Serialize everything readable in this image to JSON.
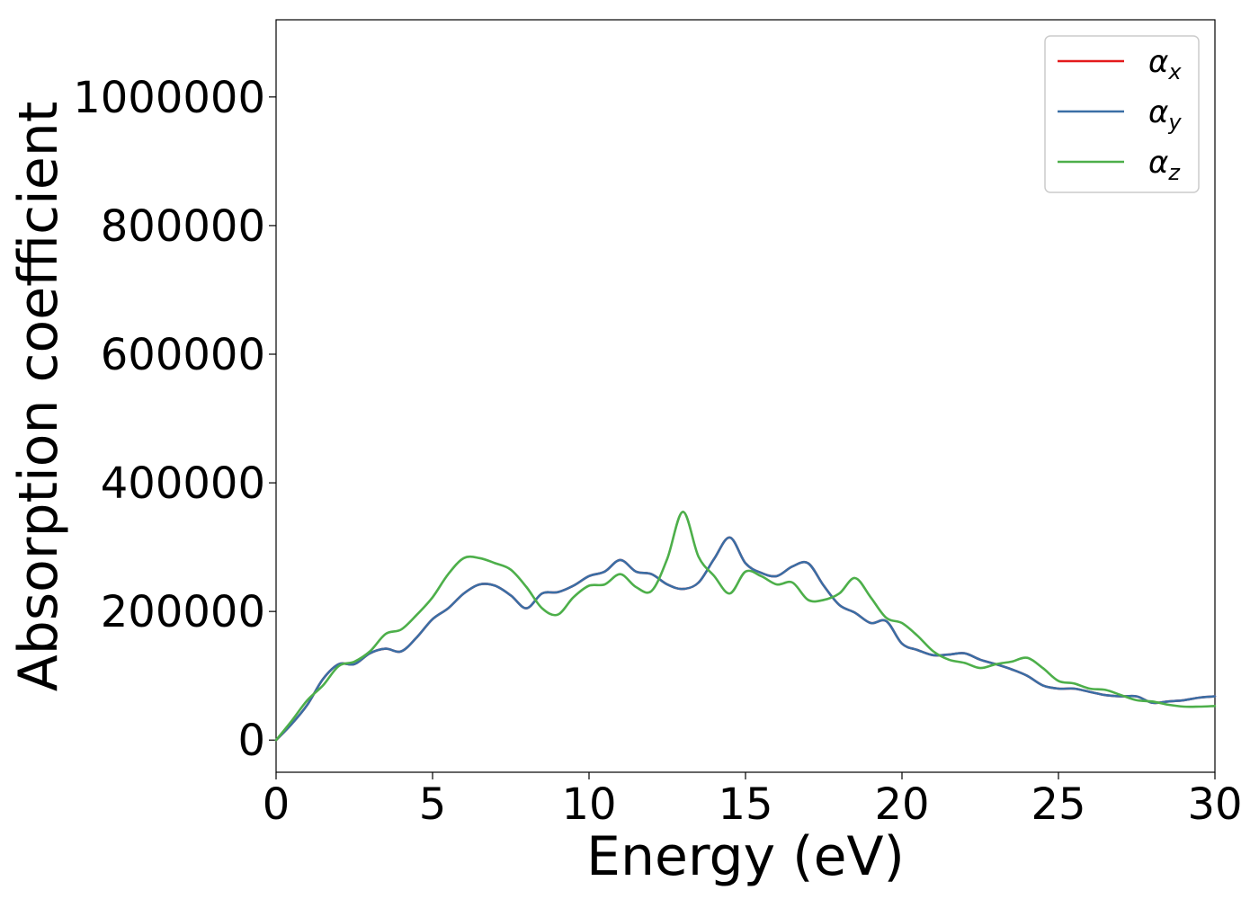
{
  "chart_data": {
    "type": "line",
    "xlabel": "Energy (eV)",
    "ylabel": "Absorption coefficient",
    "xlim": [
      0,
      30
    ],
    "ylim": [
      -50000,
      1120000
    ],
    "xticks": [
      0,
      5,
      10,
      15,
      20,
      25,
      30
    ],
    "yticks": [
      0,
      200000,
      400000,
      600000,
      800000,
      1000000
    ],
    "grid": false,
    "legend_position": "top-right",
    "series": [
      {
        "name": "αx",
        "legend_base": "α",
        "legend_sub": "x",
        "color": "#e41a1c",
        "x": [
          0,
          0.5,
          1,
          1.5,
          2,
          2.5,
          3,
          3.5,
          4,
          4.5,
          5,
          5.5,
          6,
          6.5,
          7,
          7.5,
          8,
          8.5,
          9,
          9.5,
          10,
          10.5,
          11,
          11.5,
          12,
          12.5,
          13,
          13.5,
          14,
          14.5,
          15,
          15.5,
          16,
          16.5,
          17,
          17.5,
          18,
          18.5,
          19,
          19.5,
          20,
          20.5,
          21,
          21.5,
          22,
          22.5,
          23,
          23.5,
          24,
          24.5,
          25,
          25.5,
          26,
          26.5,
          27,
          27.5,
          28,
          28.5,
          29,
          29.5,
          30
        ],
        "y": [
          0,
          25000,
          55000,
          95000,
          118000,
          118000,
          135000,
          142000,
          138000,
          160000,
          188000,
          205000,
          228000,
          242000,
          240000,
          225000,
          205000,
          228000,
          230000,
          240000,
          255000,
          262000,
          280000,
          262000,
          258000,
          242000,
          235000,
          245000,
          282000,
          315000,
          275000,
          260000,
          255000,
          270000,
          275000,
          240000,
          210000,
          198000,
          182000,
          185000,
          150000,
          140000,
          132000,
          133000,
          135000,
          125000,
          118000,
          110000,
          100000,
          85000,
          80000,
          80000,
          75000,
          70000,
          68000,
          68000,
          58000,
          60000,
          62000,
          66000,
          68000
        ]
      },
      {
        "name": "αy",
        "legend_base": "α",
        "legend_sub": "y",
        "color": "#3a6ea5",
        "x": [
          0,
          0.5,
          1,
          1.5,
          2,
          2.5,
          3,
          3.5,
          4,
          4.5,
          5,
          5.5,
          6,
          6.5,
          7,
          7.5,
          8,
          8.5,
          9,
          9.5,
          10,
          10.5,
          11,
          11.5,
          12,
          12.5,
          13,
          13.5,
          14,
          14.5,
          15,
          15.5,
          16,
          16.5,
          17,
          17.5,
          18,
          18.5,
          19,
          19.5,
          20,
          20.5,
          21,
          21.5,
          22,
          22.5,
          23,
          23.5,
          24,
          24.5,
          25,
          25.5,
          26,
          26.5,
          27,
          27.5,
          28,
          28.5,
          29,
          29.5,
          30
        ],
        "y": [
          0,
          25000,
          55000,
          95000,
          118000,
          118000,
          135000,
          142000,
          138000,
          160000,
          188000,
          205000,
          228000,
          242000,
          240000,
          225000,
          205000,
          228000,
          230000,
          240000,
          255000,
          262000,
          280000,
          262000,
          258000,
          242000,
          235000,
          245000,
          282000,
          315000,
          275000,
          260000,
          255000,
          270000,
          275000,
          240000,
          210000,
          198000,
          182000,
          185000,
          150000,
          140000,
          132000,
          133000,
          135000,
          125000,
          118000,
          110000,
          100000,
          85000,
          80000,
          80000,
          75000,
          70000,
          68000,
          68000,
          58000,
          60000,
          62000,
          66000,
          68000
        ]
      },
      {
        "name": "αz",
        "legend_base": "α",
        "legend_sub": "z",
        "color": "#4daf4a",
        "x": [
          0,
          0.5,
          1,
          1.5,
          2,
          2.5,
          3,
          3.5,
          4,
          4.5,
          5,
          5.5,
          6,
          6.5,
          7,
          7.5,
          8,
          8.5,
          9,
          9.5,
          10,
          10.5,
          11,
          11.5,
          12,
          12.5,
          13,
          13.5,
          14,
          14.5,
          15,
          15.5,
          16,
          16.5,
          17,
          17.5,
          18,
          18.5,
          19,
          19.5,
          20,
          20.5,
          21,
          21.5,
          22,
          22.5,
          23,
          23.5,
          24,
          24.5,
          25,
          25.5,
          26,
          26.5,
          27,
          27.5,
          28,
          28.5,
          29,
          29.5,
          30
        ],
        "y": [
          0,
          30000,
          62000,
          85000,
          115000,
          122000,
          138000,
          165000,
          172000,
          195000,
          222000,
          258000,
          283000,
          283000,
          275000,
          265000,
          238000,
          205000,
          195000,
          222000,
          240000,
          242000,
          258000,
          238000,
          232000,
          282000,
          355000,
          285000,
          255000,
          228000,
          262000,
          255000,
          242000,
          245000,
          218000,
          218000,
          228000,
          252000,
          222000,
          190000,
          182000,
          162000,
          138000,
          125000,
          120000,
          112000,
          118000,
          122000,
          128000,
          112000,
          92000,
          88000,
          80000,
          78000,
          70000,
          62000,
          60000,
          55000,
          52000,
          52000,
          53000
        ]
      }
    ]
  }
}
